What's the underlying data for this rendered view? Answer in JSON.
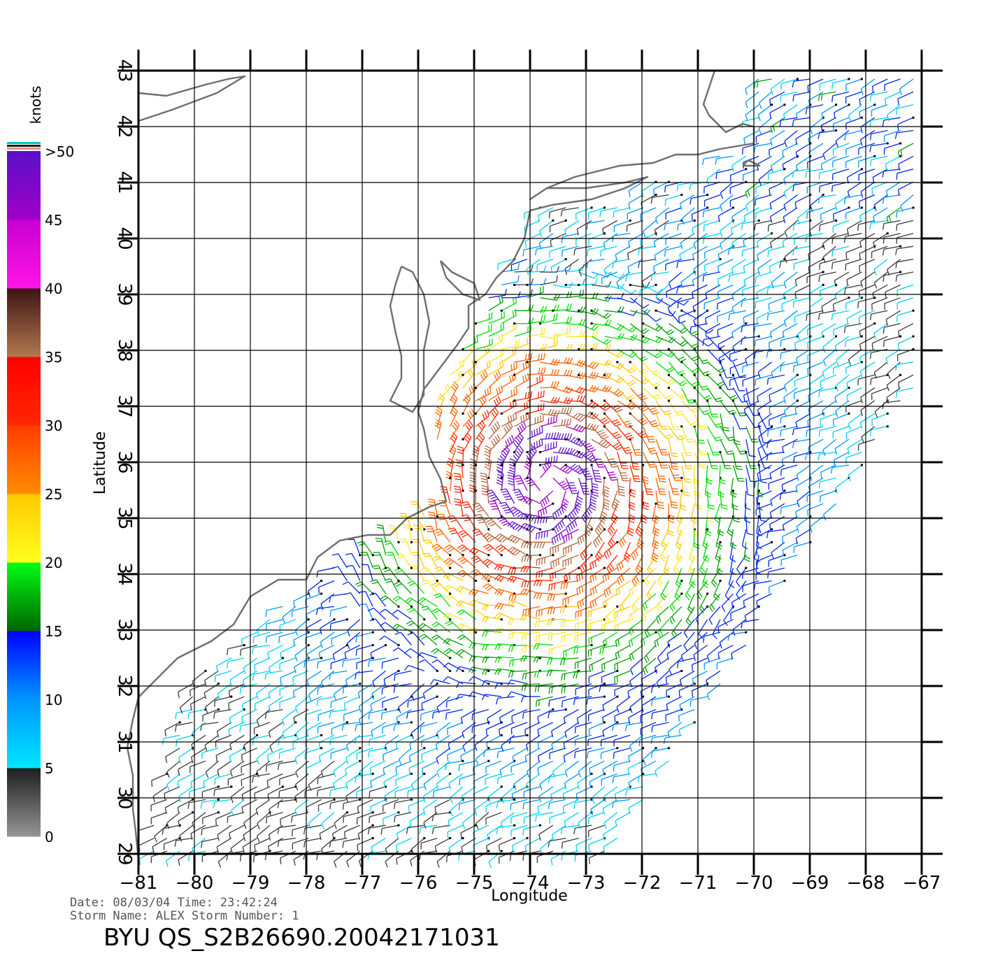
{
  "map": {
    "xlabel": "Longitude",
    "ylabel": "Latitude",
    "lon_ticks": [
      "−81",
      "−80",
      "−79",
      "−78",
      "−77",
      "−76",
      "−75",
      "−74",
      "−73",
      "−72",
      "−71",
      "−70",
      "−69",
      "−68",
      "−67"
    ],
    "lat_ticks": [
      "29",
      "30",
      "31",
      "32",
      "33",
      "34",
      "35",
      "36",
      "37",
      "38",
      "39",
      "40",
      "41",
      "42",
      "43"
    ],
    "lon_range": [
      -81,
      -67
    ],
    "lat_range": [
      29,
      43
    ],
    "grid": true,
    "coastline_color": "#6e6e6e"
  },
  "colorbar": {
    "unit": "knots",
    "labels": [
      ">50",
      "45",
      "40",
      "35",
      "30",
      "25",
      "20",
      "15",
      "10",
      "5",
      "0"
    ],
    "colors": [
      "#5a10c8",
      "#c800e6",
      "#ff14e6",
      "#3c1414",
      "#a05a3c",
      "#ff1400",
      "#ff5a00",
      "#ffc800",
      "#ffff1e",
      "#00c800",
      "#00e600",
      "#0000ff",
      "#0096ff",
      "#00e6ff",
      "#1e1e1e",
      "#969696"
    ],
    "top_swatches": [
      "#e68c96",
      "#1e1e1e",
      "#00c8c8"
    ]
  },
  "info": {
    "line1": "Date: 08/03/04   Time: 23:42:24",
    "line2": "Storm Name: ALEX   Storm Number: 1",
    "title": "BYU QS_S2B26690.20042171031"
  },
  "storm": {
    "name": "ALEX",
    "center_lon": -73.7,
    "center_lat": 35.6
  }
}
